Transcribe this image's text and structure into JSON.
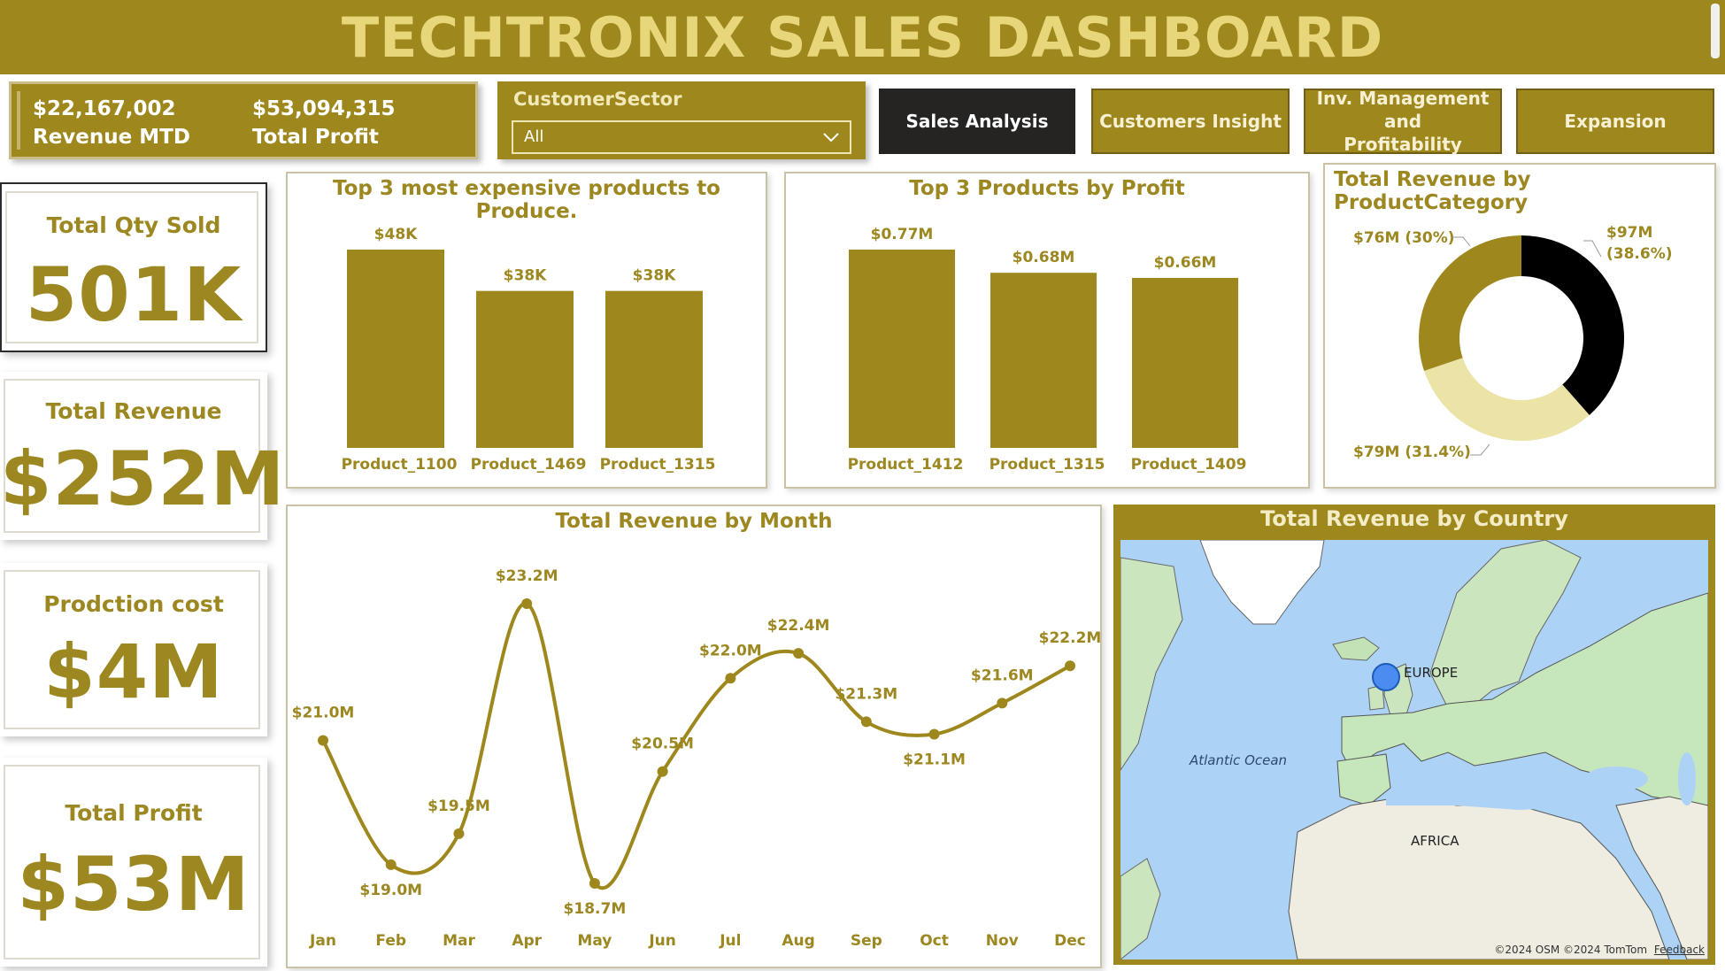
{
  "header": {
    "title": "TECHTRONIX SALES DASHBOARD"
  },
  "kpi_strip": {
    "revenue_mtd_value": "$22,167,002",
    "revenue_mtd_label": "Revenue MTD",
    "total_profit_value": "$53,094,315",
    "total_profit_label": "Total Profit"
  },
  "filter": {
    "label": "CustomerSector",
    "selected": "All"
  },
  "nav": {
    "sales_analysis": "Sales Analysis",
    "customers_insight": "Customers Insight",
    "inv_line1": "Inv. Management and",
    "inv_line2": "Profitability",
    "expansion": "Expansion",
    "active": "sales_analysis"
  },
  "cards": {
    "qty": {
      "label": "Total Qty Sold",
      "value": "501K"
    },
    "revenue": {
      "label": "Total Revenue",
      "value": "$252M"
    },
    "cost": {
      "label": "Prodction cost",
      "value": "$4M"
    },
    "profit": {
      "label": "Total Profit",
      "value": "$53M"
    }
  },
  "colors": {
    "gold": "#9e881e",
    "dark": "#252423",
    "light_gold": "#ece3a6",
    "black": "#000000"
  },
  "panels": {
    "expensive_title": "Top 3 most expensive products to Produce.",
    "profit_title": "Top 3 Products by Profit",
    "category_title": "Total Revenue by ProductCategory",
    "month_title": "Total Revenue by Month",
    "country_title": "Total Revenue by Country"
  },
  "chart_data": [
    {
      "type": "bar",
      "title": "Top 3 most expensive products to Produce.",
      "categories": [
        "Product_1100",
        "Product_1469",
        "Product_1315"
      ],
      "values": [
        48,
        38,
        38
      ],
      "data_labels": [
        "$48K",
        "$38K",
        "$38K"
      ],
      "ylim": [
        0,
        48
      ]
    },
    {
      "type": "bar",
      "title": "Top 3 Products by Profit",
      "categories": [
        "Product_1412",
        "Product_1315",
        "Product_1409"
      ],
      "values": [
        0.77,
        0.68,
        0.66
      ],
      "data_labels": [
        "$0.77M",
        "$0.68M",
        "$0.66M"
      ],
      "ylim": [
        0,
        0.77
      ]
    },
    {
      "type": "pie",
      "title": "Total Revenue by ProductCategory",
      "donut": true,
      "slices": [
        {
          "value": 97,
          "percent": 38.6,
          "label_line1": "$97M",
          "label_line2": "(38.6%)",
          "color": "#000000"
        },
        {
          "value": 79,
          "percent": 31.4,
          "label_line1": "$79M (31.4%)",
          "label_line2": "",
          "color": "#ece3a6"
        },
        {
          "value": 76,
          "percent": 30.0,
          "label_line1": "$76M (30%)",
          "label_line2": "",
          "color": "#9e881e"
        }
      ]
    },
    {
      "type": "line",
      "title": "Total Revenue by Month",
      "categories": [
        "Jan",
        "Feb",
        "Mar",
        "Apr",
        "May",
        "Jun",
        "Jul",
        "Aug",
        "Sep",
        "Oct",
        "Nov",
        "Dec"
      ],
      "values": [
        21.0,
        19.0,
        19.5,
        23.2,
        18.7,
        20.5,
        22.0,
        22.4,
        21.3,
        21.1,
        21.6,
        22.2
      ],
      "data_labels": [
        "$21.0M",
        "$19.0M",
        "$19.5M",
        "$23.2M",
        "$18.7M",
        "$20.5M",
        "$22.0M",
        "$22.4M",
        "$21.3M",
        "$21.1M",
        "$21.6M",
        "$22.2M"
      ],
      "ylim": [
        18.7,
        23.2
      ]
    }
  ],
  "map": {
    "labels": {
      "europe": "EUROPE",
      "africa": "AFRICA",
      "ocean": "Atlantic Ocean"
    },
    "attribution": "©2024 OSM ©2024 TomTom",
    "feedback": "Feedback",
    "bubble_region": "Europe"
  }
}
